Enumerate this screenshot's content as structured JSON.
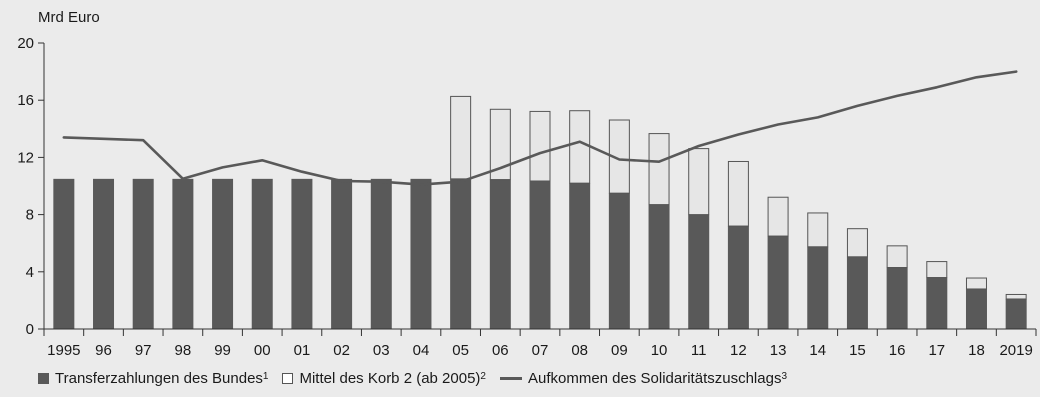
{
  "chart_data": {
    "type": "bar",
    "ylabel": "Mrd Euro",
    "ylim": [
      0,
      20
    ],
    "yticks": [
      "0",
      "4",
      "8",
      "12",
      "16",
      "20"
    ],
    "categories": [
      "1995",
      "96",
      "97",
      "98",
      "99",
      "00",
      "01",
      "02",
      "03",
      "04",
      "05",
      "06",
      "07",
      "08",
      "09",
      "10",
      "11",
      "12",
      "13",
      "14",
      "15",
      "16",
      "17",
      "18",
      "2019"
    ],
    "series": [
      {
        "name": "Transferzahlungen des Bundes",
        "sup": "1",
        "kind": "stacked-bar",
        "color": "#595959",
        "values": [
          10.5,
          10.5,
          10.5,
          10.5,
          10.5,
          10.5,
          10.5,
          10.5,
          10.5,
          10.5,
          10.5,
          10.45,
          10.35,
          10.2,
          9.5,
          8.7,
          8.0,
          7.2,
          6.5,
          5.75,
          5.05,
          4.3,
          3.6,
          2.8,
          2.1
        ]
      },
      {
        "name": "Mittel des Korb 2 (ab 2005)",
        "sup": "2",
        "kind": "stacked-bar",
        "color": "#e6e6e6",
        "values": [
          0,
          0,
          0,
          0,
          0,
          0,
          0,
          0,
          0,
          0,
          5.8,
          4.95,
          4.9,
          5.1,
          5.15,
          5.0,
          4.65,
          4.55,
          2.75,
          2.4,
          2.0,
          1.55,
          1.15,
          0.8,
          0.35
        ]
      },
      {
        "name": "Aufkommen des Solidaritätszuschlags",
        "sup": "3",
        "kind": "line",
        "color": "#595959",
        "values": [
          13.4,
          13.3,
          13.2,
          10.5,
          11.3,
          11.8,
          11.0,
          10.35,
          10.3,
          10.1,
          10.3,
          11.25,
          12.3,
          13.1,
          11.85,
          11.7,
          12.8,
          13.6,
          14.3,
          14.8,
          15.6,
          16.3,
          16.9,
          17.6,
          18.0
        ]
      }
    ]
  }
}
